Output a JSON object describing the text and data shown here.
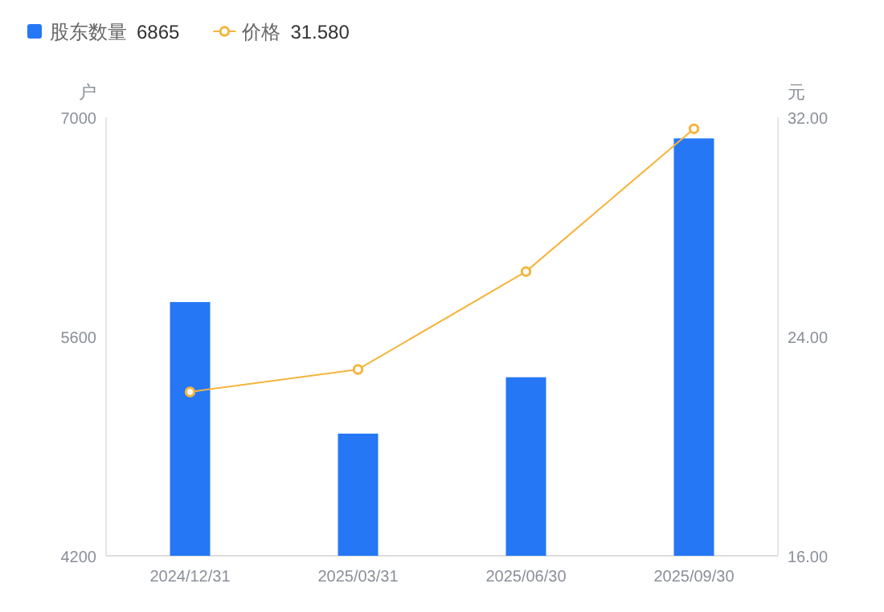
{
  "chart_data": {
    "type": "bar",
    "categories": [
      "2024/12/31",
      "2025/03/31",
      "2025/06/30",
      "2025/09/30"
    ],
    "series": [
      {
        "name": "股东数量",
        "color": "#2577f5",
        "values": [
          5820,
          4980,
          5340,
          6865
        ]
      },
      {
        "name": "价格",
        "type": "line",
        "axis": "y2",
        "color": "#f5b43c",
        "values": [
          21.98,
          22.8,
          26.37,
          31.58
        ]
      }
    ],
    "ylabel": "户",
    "y2label": "元",
    "ylim": [
      4200,
      7000
    ],
    "yticks": [
      4200,
      5600,
      7000
    ],
    "y2lim": [
      16,
      32
    ],
    "y2ticks": [
      {
        "value": 16,
        "label": "16.00"
      },
      {
        "value": 24,
        "label": "24.00"
      },
      {
        "value": 32,
        "label": "32.00"
      }
    ],
    "annotations": [
      "6865",
      "31.580"
    ],
    "legend": "top left",
    "marker": "circle",
    "grid": false
  }
}
